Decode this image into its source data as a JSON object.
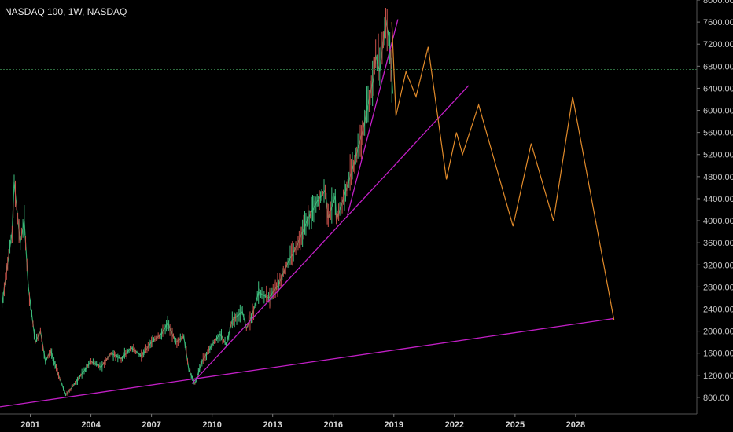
{
  "chart_data": {
    "type": "candlestick",
    "title": "NASDAQ 100, 1W, NASDAQ",
    "x_ticks": [
      "2001",
      "2004",
      "2007",
      "2010",
      "2013",
      "2016",
      "2019",
      "2022",
      "2025",
      "2028"
    ],
    "y_ticks": [
      "800.00",
      "1200.00",
      "1600.00",
      "2000.00",
      "2400.00",
      "2800.00",
      "3200.00",
      "3600.00",
      "4000.00",
      "4400.00",
      "4800.00",
      "5200.00",
      "5600.00",
      "6000.00",
      "6400.00",
      "6800.00",
      "7200.00",
      "7600.00",
      "8000.00"
    ],
    "ylim": [
      500,
      8000
    ],
    "xlim": [
      1999.5,
      2034.0
    ],
    "horizontal_level": 6740,
    "price_path": [
      [
        1999.6,
        2500
      ],
      [
        2000.1,
        3800
      ],
      [
        2000.2,
        4700
      ],
      [
        2000.5,
        3600
      ],
      [
        2000.7,
        4000
      ],
      [
        2000.9,
        2800
      ],
      [
        2001.25,
        1800
      ],
      [
        2001.5,
        2000
      ],
      [
        2001.75,
        1450
      ],
      [
        2002.0,
        1650
      ],
      [
        2002.4,
        1200
      ],
      [
        2002.75,
        850
      ],
      [
        2003.0,
        950
      ],
      [
        2003.5,
        1200
      ],
      [
        2004.0,
        1450
      ],
      [
        2004.5,
        1350
      ],
      [
        2005.0,
        1600
      ],
      [
        2005.5,
        1500
      ],
      [
        2006.0,
        1700
      ],
      [
        2006.5,
        1550
      ],
      [
        2007.0,
        1800
      ],
      [
        2007.5,
        1950
      ],
      [
        2007.8,
        2150
      ],
      [
        2008.2,
        1800
      ],
      [
        2008.6,
        1900
      ],
      [
        2008.85,
        1300
      ],
      [
        2009.15,
        1050
      ],
      [
        2009.5,
        1450
      ],
      [
        2010.0,
        1750
      ],
      [
        2010.4,
        1950
      ],
      [
        2010.7,
        1750
      ],
      [
        2011.0,
        2200
      ],
      [
        2011.5,
        2350
      ],
      [
        2011.7,
        2050
      ],
      [
        2012.0,
        2300
      ],
      [
        2012.3,
        2700
      ],
      [
        2012.8,
        2600
      ],
      [
        2013.3,
        2850
      ],
      [
        2013.7,
        3200
      ],
      [
        2014.2,
        3550
      ],
      [
        2014.7,
        4000
      ],
      [
        2015.2,
        4350
      ],
      [
        2015.6,
        4550
      ],
      [
        2015.75,
        4050
      ],
      [
        2016.1,
        4450
      ],
      [
        2016.15,
        4000
      ],
      [
        2016.5,
        4400
      ],
      [
        2017.0,
        5000
      ],
      [
        2017.5,
        5700
      ],
      [
        2018.0,
        6600
      ],
      [
        2018.1,
        7000
      ],
      [
        2018.3,
        6700
      ],
      [
        2018.6,
        7650
      ],
      [
        2018.8,
        7200
      ],
      [
        2018.95,
        6300
      ]
    ],
    "projection_path": [
      [
        2018.9,
        7600
      ],
      [
        2019.1,
        5900
      ],
      [
        2019.6,
        6700
      ],
      [
        2020.1,
        6250
      ],
      [
        2020.7,
        7150
      ],
      [
        2021.6,
        4750
      ],
      [
        2022.1,
        5600
      ],
      [
        2022.4,
        5200
      ],
      [
        2023.2,
        6100
      ],
      [
        2024.9,
        3900
      ],
      [
        2025.8,
        5400
      ],
      [
        2026.9,
        4000
      ],
      [
        2027.85,
        6250
      ],
      [
        2029.9,
        2200
      ]
    ],
    "trendlines": [
      {
        "from": [
          1999.5,
          630
        ],
        "to": [
          2029.9,
          2230
        ]
      },
      {
        "from": [
          2009.0,
          1050
        ],
        "to": [
          2022.7,
          6450
        ]
      },
      {
        "from": [
          2016.7,
          4100
        ],
        "to": [
          2019.2,
          7650
        ]
      }
    ],
    "colors": {
      "background": "#000000",
      "price": "#2fa868",
      "projection": "#e08a2a",
      "trendline": "#c21fc6",
      "level": "#2e6b3f",
      "axis": "#555555"
    }
  }
}
